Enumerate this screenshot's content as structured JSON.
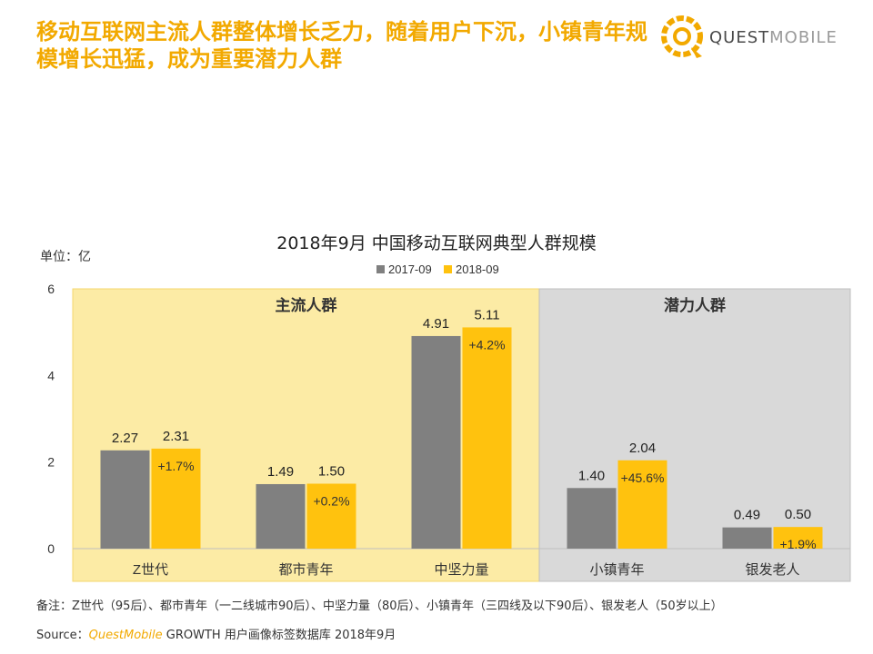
{
  "headline": "移动互联网主流人群整体增长乏力，随着用户下沉，小镇青年规模增长迅猛，成为重要潜力人群",
  "brand": {
    "part1": "QUEST",
    "part2": "MOBILE",
    "color_primary": "#F2A900"
  },
  "unit_label": "单位：亿",
  "note": "备注：Z世代（95后）、都市青年（一二线城市90后）、中坚力量（80后）、小镇青年（三四线及以下90后）、银发老人（50岁以上）",
  "source": {
    "prefix": "Source：",
    "brand": "QuestMobile",
    "suffix": " GROWTH 用户画像标签数据库 2018年9月"
  },
  "chart_data": {
    "type": "bar",
    "title": "2018年9月 中国移动互联网典型人群规模",
    "ylabel": "单位：亿",
    "ylim": [
      0,
      6
    ],
    "yticks": [
      0,
      2,
      4,
      6
    ],
    "categories": [
      "Z世代",
      "都市青年",
      "中坚力量",
      "小镇青年",
      "银发老人"
    ],
    "series": [
      {
        "name": "2017-09",
        "color": "#808080",
        "values": [
          2.27,
          1.49,
          4.91,
          1.4,
          0.49
        ],
        "labels": [
          "2.27",
          "1.49",
          "4.91",
          "1.40",
          "0.49"
        ]
      },
      {
        "name": "2018-09",
        "color": "#FFC20E",
        "values": [
          2.31,
          1.5,
          5.11,
          2.04,
          0.5
        ],
        "labels": [
          "2.31",
          "1.50",
          "5.11",
          "2.04",
          "0.50"
        ]
      }
    ],
    "growth_labels": [
      "+1.7%",
      "+0.2%",
      "+4.2%",
      "+45.6%",
      "+1.9%"
    ],
    "groups": [
      {
        "label": "主流人群",
        "categories": [
          0,
          1,
          2
        ],
        "color": "#FCEBA5"
      },
      {
        "label": "潜力人群",
        "categories": [
          3,
          4
        ],
        "color": "#D9D9D9"
      }
    ],
    "legend_position": "top-center",
    "grid": false
  }
}
